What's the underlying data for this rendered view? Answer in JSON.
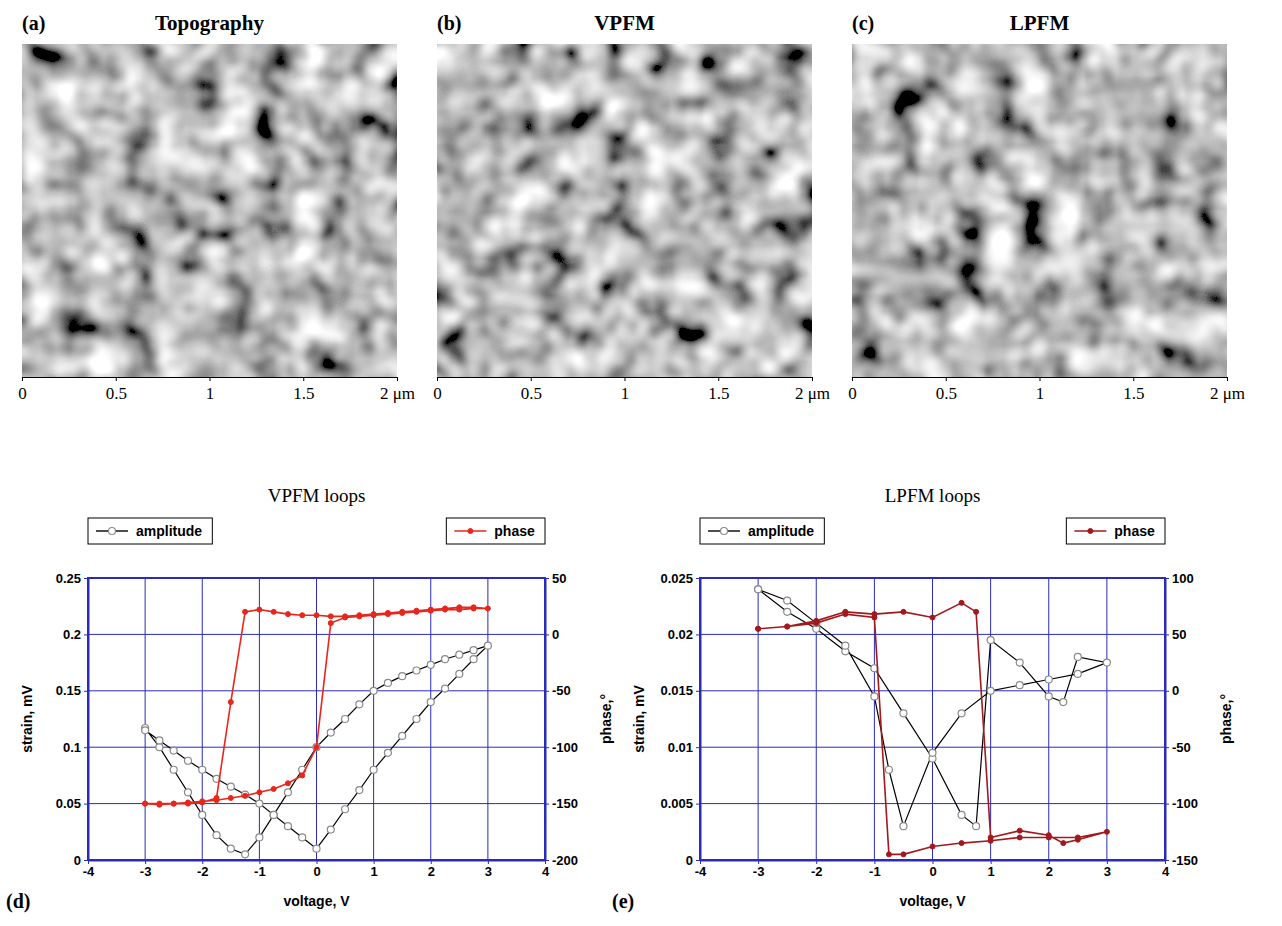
{
  "chart_data": [
    {
      "type": "image",
      "title": "Topography",
      "annotations": [
        "(a)"
      ],
      "xlim": [
        0,
        2
      ],
      "xticks": [
        0,
        0.5,
        1,
        1.5,
        {
          "value": 2,
          "label": "2 μm"
        }
      ]
    },
    {
      "type": "image",
      "title": "VPFM",
      "annotations": [
        "(b)"
      ],
      "xlim": [
        0,
        2
      ],
      "xticks": [
        0,
        0.5,
        1,
        1.5,
        {
          "value": 2,
          "label": "2 μm"
        }
      ]
    },
    {
      "type": "image",
      "title": "LPFM",
      "annotations": [
        "(c)"
      ],
      "xlim": [
        0,
        2
      ],
      "xticks": [
        0,
        0.5,
        1,
        1.5,
        {
          "value": 2,
          "label": "2 μm"
        }
      ]
    },
    {
      "type": "line",
      "title": "VPFM loops",
      "annotations": [
        "(d)"
      ],
      "xlabel": "voltage, V",
      "ylabel": "strain, mV",
      "y2label": "phase,°",
      "xlim": [
        -4,
        4
      ],
      "xticks": [
        -4,
        -3,
        -2,
        -1,
        0,
        1,
        2,
        3,
        4
      ],
      "ylim": [
        0,
        0.25
      ],
      "yticks": [
        0,
        0.05,
        0.1,
        0.15,
        0.2,
        0.25
      ],
      "y2lim": [
        -200,
        50
      ],
      "y2ticks": [
        -200,
        -150,
        -100,
        -50,
        0,
        50
      ],
      "grid": true,
      "legend": "top",
      "series": [
        {
          "name": "amplitude",
          "color": "#000000",
          "marker": "open-circle",
          "axis": "y",
          "x": [
            -3,
            -2.75,
            -2.5,
            -2.25,
            -2,
            -1.75,
            -1.5,
            -1.25,
            -1,
            -0.75,
            -0.5,
            -0.25,
            0,
            0.25,
            0.5,
            0.75,
            1,
            1.25,
            1.5,
            1.75,
            2,
            2.25,
            2.5,
            2.75,
            3,
            2.75,
            2.5,
            2.25,
            2,
            1.75,
            1.5,
            1.25,
            1,
            0.75,
            0.5,
            0.25,
            0,
            -0.25,
            -0.5,
            -0.75,
            -1,
            -1.25,
            -1.5,
            -1.75,
            -2,
            -2.25,
            -2.5,
            -2.75,
            -3
          ],
          "values": [
            0.117,
            0.1,
            0.08,
            0.06,
            0.04,
            0.022,
            0.01,
            0.005,
            0.02,
            0.04,
            0.06,
            0.08,
            0.1,
            0.113,
            0.125,
            0.138,
            0.15,
            0.157,
            0.163,
            0.168,
            0.173,
            0.178,
            0.182,
            0.186,
            0.19,
            0.178,
            0.165,
            0.152,
            0.14,
            0.125,
            0.11,
            0.095,
            0.08,
            0.062,
            0.045,
            0.027,
            0.01,
            0.02,
            0.03,
            0.04,
            0.05,
            0.058,
            0.065,
            0.072,
            0.08,
            0.088,
            0.097,
            0.106,
            0.115
          ]
        },
        {
          "name": "phase",
          "color": "#e8261c",
          "marker": "dot",
          "axis": "y2",
          "x": [
            -3,
            -2.75,
            -2.5,
            -2.25,
            -2,
            -1.75,
            -1.5,
            -1.25,
            -1,
            -0.75,
            -0.5,
            -0.25,
            0,
            0.25,
            0.5,
            0.75,
            1,
            1.25,
            1.5,
            1.75,
            2,
            2.25,
            2.5,
            2.75,
            3,
            2.75,
            2.5,
            2.25,
            2,
            1.75,
            1.5,
            1.25,
            1,
            0.75,
            0.5,
            0.25,
            0,
            -0.25,
            -0.5,
            -0.75,
            -1,
            -1.25,
            -1.5,
            -1.75,
            -2,
            -2.25,
            -2.5,
            -2.75,
            -3
          ],
          "values": [
            -150,
            -151,
            -150,
            -150,
            -149,
            -145,
            -60,
            20,
            22,
            20,
            18,
            17,
            17,
            16,
            16,
            17,
            18,
            19,
            20,
            21,
            22,
            23,
            24,
            24,
            23,
            23,
            22,
            22,
            21,
            20,
            19,
            18,
            17,
            16,
            15,
            10,
            -100,
            -125,
            -132,
            -137,
            -140,
            -143,
            -145,
            -147,
            -148,
            -149,
            -150,
            -150,
            -150
          ]
        }
      ]
    },
    {
      "type": "line",
      "title": "LPFM loops",
      "annotations": [
        "(e)"
      ],
      "xlabel": "voltage, V",
      "ylabel": "strain, mV",
      "y2label": "phase,°",
      "xlim": [
        -4,
        4
      ],
      "xticks": [
        -4,
        -3,
        -2,
        -1,
        0,
        1,
        2,
        3,
        4
      ],
      "ylim": [
        0,
        0.025
      ],
      "yticks": [
        0,
        0.005,
        0.01,
        0.015,
        0.02,
        0.025
      ],
      "y2lim": [
        -150,
        100
      ],
      "y2ticks": [
        -150,
        -100,
        -50,
        0,
        50,
        100
      ],
      "grid": true,
      "legend": "top",
      "series": [
        {
          "name": "amplitude",
          "color": "#000000",
          "marker": "open-circle",
          "axis": "y",
          "x": [
            -3,
            -2.5,
            -2,
            -1.5,
            -1,
            -0.5,
            0,
            0.5,
            0.75,
            1,
            1.5,
            2,
            2.25,
            2.5,
            3,
            2.5,
            2,
            1.5,
            1,
            0.5,
            0,
            -0.5,
            -0.75,
            -1,
            -1.5,
            -2,
            -2.5,
            -3
          ],
          "values": [
            0.024,
            0.022,
            0.0205,
            0.0185,
            0.017,
            0.013,
            0.009,
            0.004,
            0.003,
            0.0195,
            0.0175,
            0.0145,
            0.014,
            0.018,
            0.0175,
            0.0165,
            0.016,
            0.0155,
            0.015,
            0.013,
            0.0095,
            0.003,
            0.008,
            0.0145,
            0.019,
            0.021,
            0.023,
            0.024
          ]
        },
        {
          "name": "phase",
          "color": "#a3181c",
          "marker": "dot",
          "axis": "y2",
          "x": [
            -3,
            -2.5,
            -2,
            -1.5,
            -1,
            -0.5,
            0,
            0.5,
            0.75,
            1,
            1.5,
            2,
            2.25,
            2.5,
            3,
            2.5,
            2,
            1.5,
            1,
            0.5,
            0,
            -0.5,
            -0.75,
            -1,
            -1.5,
            -2,
            -2.5,
            -3
          ],
          "values": [
            55,
            57,
            62,
            70,
            68,
            70,
            65,
            78,
            70,
            -130,
            -124,
            -128,
            -135,
            -132,
            -125,
            -130,
            -130,
            -130,
            -133,
            -135,
            -138,
            -145,
            -145,
            65,
            68,
            60,
            57,
            55
          ]
        }
      ]
    }
  ]
}
